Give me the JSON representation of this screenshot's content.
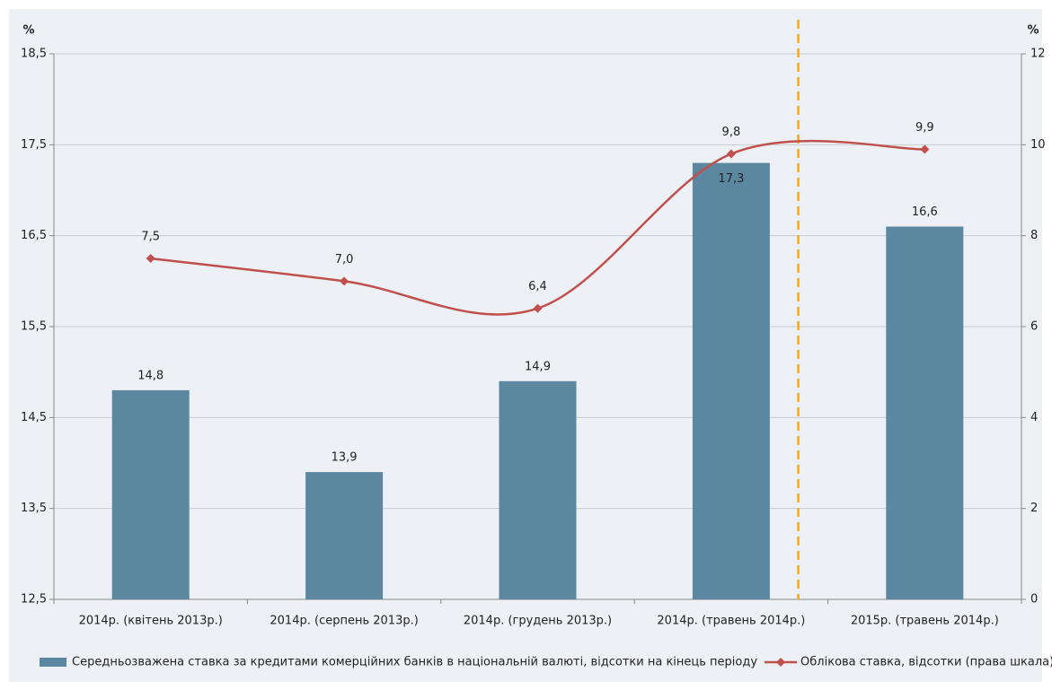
{
  "chart_data": {
    "type": "bar_line",
    "y_unit": "%",
    "y2_unit": "%",
    "categories": [
      "2014р. (квітень 2013р.)",
      "2014р. (серпень 2013р.)",
      "2014р. (грудень 2013р.)",
      "2014р. (травень 2014р.)",
      "2015р. (травень 2014р.)"
    ],
    "series": [
      {
        "name": "Середньозважена ставка за кредитами комерційних банків в національній валюті, відсотки на кінець періоду",
        "color": "#5b87a0",
        "type": "bar",
        "values": [
          14.8,
          13.9,
          14.9,
          17.3,
          16.6
        ],
        "value_labels": [
          "14,8",
          "13,9",
          "14,9",
          "17,3",
          "16,6"
        ]
      },
      {
        "name": "Облікова ставка, відсотки (права шкала)",
        "color": "#c0504d",
        "type": "line",
        "axis": "y2",
        "values": [
          7.5,
          7.0,
          6.4,
          9.8,
          9.9
        ],
        "value_labels": [
          "7,5",
          "7,0",
          "6,4",
          "9,8",
          "9,9"
        ]
      }
    ],
    "ylim": [
      12.5,
      18.5
    ],
    "yticks": [
      {
        "value": 12.5,
        "label": "12,5"
      },
      {
        "value": 13.5,
        "label": "13,5"
      },
      {
        "value": 14.5,
        "label": "14,5"
      },
      {
        "value": 15.5,
        "label": "15,5"
      },
      {
        "value": 16.5,
        "label": "16,5"
      },
      {
        "value": 17.5,
        "label": "17,5"
      },
      {
        "value": 18.5,
        "label": "18,5"
      }
    ],
    "y2lim": [
      0,
      12
    ],
    "y2ticks": [
      0,
      2,
      4,
      6,
      8,
      10,
      12
    ],
    "grid": true,
    "legend": "bottom"
  }
}
